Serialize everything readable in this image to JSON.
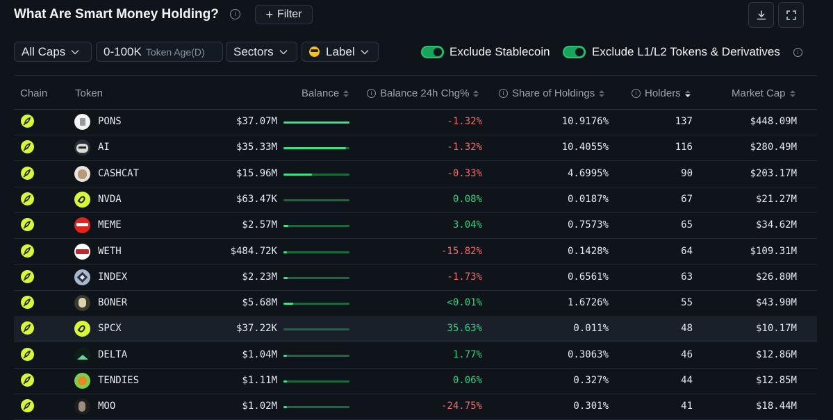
{
  "header": {
    "title": "What Are Smart Money Holding?",
    "filter_label": "Filter"
  },
  "filters": {
    "caps": "All Caps",
    "token_age_value": "0-100K",
    "token_age_label": "Token Age(D)",
    "sectors": "Sectors",
    "label": "Label",
    "exclude_stablecoin": "Exclude Stablecoin",
    "exclude_l1l2": "Exclude L1/L2 Tokens & Derivatives"
  },
  "columns": {
    "chain": "Chain",
    "token": "Token",
    "balance": "Balance",
    "balance_chg": "Balance 24h Chg%",
    "share": "Share of Holdings",
    "holders": "Holders",
    "market_cap": "Market Cap"
  },
  "colors": {
    "positive": "#35d07f",
    "negative": "#f06a6a",
    "accent": "#24c76d",
    "chain_badge": "#d8f73a"
  },
  "rows": [
    {
      "token": "PONS",
      "balance": "$37.07M",
      "bar_fraction": 1.0,
      "chg": "-1.32%",
      "chg_dir": "neg",
      "share": "10.9176%",
      "holders": "137",
      "mcap": "$448.09M",
      "icon": "pons-icon"
    },
    {
      "token": "AI",
      "balance": "$35.33M",
      "bar_fraction": 0.95,
      "chg": "-1.32%",
      "chg_dir": "neg",
      "share": "10.4055%",
      "holders": "116",
      "mcap": "$280.49M",
      "icon": "ai-cat-icon"
    },
    {
      "token": "CASHCAT",
      "balance": "$15.96M",
      "bar_fraction": 0.43,
      "chg": "-0.33%",
      "chg_dir": "neg",
      "share": "4.6995%",
      "holders": "90",
      "mcap": "$203.17M",
      "icon": "cashcat-icon"
    },
    {
      "token": "NVDA",
      "balance": "$63.47K",
      "bar_fraction": 0.0,
      "chg": "0.08%",
      "chg_dir": "pos",
      "share": "0.0187%",
      "holders": "67",
      "mcap": "$21.27M",
      "icon": "nvda-icon"
    },
    {
      "token": "MEME",
      "balance": "$2.57M",
      "bar_fraction": 0.07,
      "chg": "3.04%",
      "chg_dir": "pos",
      "share": "0.7573%",
      "holders": "65",
      "mcap": "$34.62M",
      "icon": "meme-amc-icon"
    },
    {
      "token": "WETH",
      "balance": "$484.72K",
      "bar_fraction": 0.013,
      "chg": "-15.82%",
      "chg_dir": "neg",
      "share": "0.1428%",
      "holders": "64",
      "mcap": "$109.31M",
      "icon": "weth-icon"
    },
    {
      "token": "INDEX",
      "balance": "$2.23M",
      "bar_fraction": 0.06,
      "chg": "-1.73%",
      "chg_dir": "neg",
      "share": "0.6561%",
      "holders": "63",
      "mcap": "$26.80M",
      "icon": "index-icon"
    },
    {
      "token": "BONER",
      "balance": "$5.68M",
      "bar_fraction": 0.15,
      "chg": "<0.01%",
      "chg_dir": "pos",
      "share": "1.6726%",
      "holders": "55",
      "mcap": "$43.90M",
      "icon": "boner-icon"
    },
    {
      "token": "SPCX",
      "balance": "$37.22K",
      "bar_fraction": 0.0,
      "chg": "35.63%",
      "chg_dir": "pos",
      "share": "0.011%",
      "holders": "48",
      "mcap": "$10.17M",
      "icon": "spcx-icon"
    },
    {
      "token": "DELTA",
      "balance": "$1.04M",
      "bar_fraction": 0.028,
      "chg": "1.77%",
      "chg_dir": "pos",
      "share": "0.3063%",
      "holders": "46",
      "mcap": "$12.86M",
      "icon": "delta-icon"
    },
    {
      "token": "TENDIES",
      "balance": "$1.11M",
      "bar_fraction": 0.03,
      "chg": "0.06%",
      "chg_dir": "pos",
      "share": "0.327%",
      "holders": "44",
      "mcap": "$12.85M",
      "icon": "tendies-icon"
    },
    {
      "token": "MOO",
      "balance": "$1.02M",
      "bar_fraction": 0.027,
      "chg": "-24.75%",
      "chg_dir": "neg",
      "share": "0.301%",
      "holders": "41",
      "mcap": "$18.44M",
      "icon": "moo-icon"
    }
  ]
}
